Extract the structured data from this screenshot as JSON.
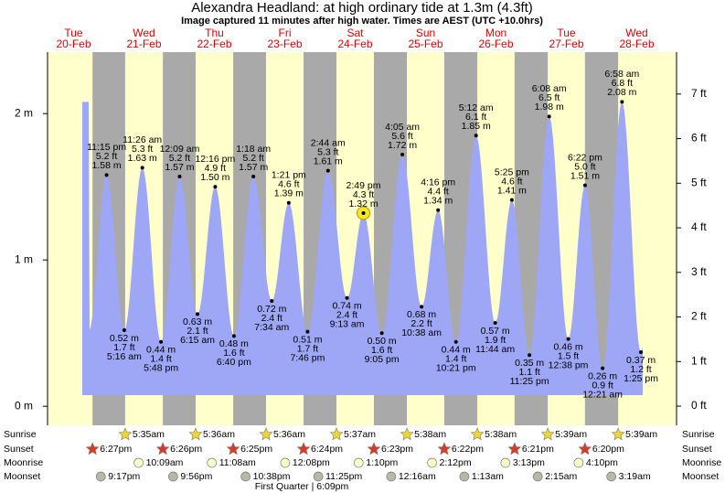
{
  "chart_data": {
    "type": "tide",
    "title": "Alexandra Headland: at high  ordinary tide at 1.3m (4.3ft)",
    "subtitle": "Image captured 11 minutes after high water. Times are AEST (UTC +10.0hrs)",
    "colors": {
      "day": "#ffffcc",
      "night": "#a9a9a9",
      "water": "#9ea6f6",
      "sunset": "#d93a2b",
      "sunrise": "#f2d630",
      "moonrise": "#ffffc8",
      "moonset": "#b8b8a8"
    },
    "ylim": [
      -0.13,
      2.42
    ],
    "yticks": [
      {
        "value": 0,
        "label": "0 m"
      },
      {
        "value": 1,
        "label": "1 m"
      },
      {
        "value": 2,
        "label": "2 m"
      }
    ],
    "y2lim": [
      -0.43,
      7.94
    ],
    "y2ticks": [
      {
        "value": 0,
        "label": "0 ft"
      },
      {
        "value": 1,
        "label": "1 ft"
      },
      {
        "value": 2,
        "label": "2 ft"
      },
      {
        "value": 3,
        "label": "3 ft"
      },
      {
        "value": 4,
        "label": "4 ft"
      },
      {
        "value": 5,
        "label": "5 ft"
      },
      {
        "value": 6,
        "label": "6 ft"
      },
      {
        "value": 7,
        "label": "7 ft"
      }
    ],
    "row_labels": {
      "sunrise": "Sunrise",
      "sunset": "Sunset",
      "moonrise": "Moonrise",
      "moonset": "Moonset"
    },
    "moon_phase": "First Quarter | 6:09pm",
    "days": [
      {
        "weekday": "Tue",
        "date": "20-Feb",
        "sunset": "6:27pm",
        "moonset": "9:17pm",
        "tides": [
          {
            "time": "11:15 pm",
            "feet": "5.2 ft",
            "height": 1.58,
            "height_label": "1.58 m"
          }
        ]
      },
      {
        "weekday": "Wed",
        "date": "21-Feb",
        "sunrise": "5:35am",
        "sunset": "6:26pm",
        "moonrise": "10:09am",
        "moonset": "9:56pm",
        "tides": [
          {
            "time": "5:16 am",
            "feet": "1.7 ft",
            "height": 0.52,
            "height_label": "0.52 m"
          },
          {
            "time": "11:26 am",
            "feet": "5.3 ft",
            "height": 1.63,
            "height_label": "1.63 m"
          },
          {
            "time": "5:48 pm",
            "feet": "1.4 ft",
            "height": 0.44,
            "height_label": "0.44 m"
          }
        ]
      },
      {
        "weekday": "Thu",
        "date": "22-Feb",
        "sunrise": "5:36am",
        "sunset": "6:25pm",
        "moonrise": "11:08am",
        "moonset": "10:38pm",
        "tides": [
          {
            "time": "12:09 am",
            "feet": "5.2 ft",
            "height": 1.57,
            "height_label": "1.57 m"
          },
          {
            "time": "6:15 am",
            "feet": "2.1 ft",
            "height": 0.63,
            "height_label": "0.63 m"
          },
          {
            "time": "12:16 pm",
            "feet": "4.9 ft",
            "height": 1.5,
            "height_label": "1.50 m"
          },
          {
            "time": "6:40 pm",
            "feet": "1.6 ft",
            "height": 0.48,
            "height_label": "0.48 m"
          }
        ]
      },
      {
        "weekday": "Fri",
        "date": "23-Feb",
        "sunrise": "5:36am",
        "sunset": "6:24pm",
        "moonrise": "12:08pm",
        "moonset": "11:25pm",
        "tides": [
          {
            "time": "1:18 am",
            "feet": "5.2 ft",
            "height": 1.57,
            "height_label": "1.57 m"
          },
          {
            "time": "7:34 am",
            "feet": "2.4 ft",
            "height": 0.72,
            "height_label": "0.72 m"
          },
          {
            "time": "1:21 pm",
            "feet": "4.6 ft",
            "height": 1.39,
            "height_label": "1.39 m"
          },
          {
            "time": "7:46 pm",
            "feet": "1.7 ft",
            "height": 0.51,
            "height_label": "0.51 m"
          }
        ]
      },
      {
        "weekday": "Sat",
        "date": "24-Feb",
        "sunrise": "5:37am",
        "sunset": "6:23pm",
        "moonrise": "1:10pm",
        "tides": [
          {
            "time": "2:44 am",
            "feet": "5.3 ft",
            "height": 1.61,
            "height_label": "1.61 m"
          },
          {
            "time": "9:13 am",
            "feet": "2.4 ft",
            "height": 0.74,
            "height_label": "0.74 m"
          },
          {
            "time": "2:49 pm",
            "feet": "4.3 ft",
            "height": 1.32,
            "height_label": "1.32 m",
            "highlight": true
          },
          {
            "time": "9:05 pm",
            "feet": "1.6 ft",
            "height": 0.5,
            "height_label": "0.50 m"
          }
        ]
      },
      {
        "weekday": "Sun",
        "date": "25-Feb",
        "sunrise": "5:38am",
        "sunset": "6:22pm",
        "moonrise": "2:12pm",
        "moonset": "12:16am",
        "tides": [
          {
            "time": "4:05 am",
            "feet": "5.6 ft",
            "height": 1.72,
            "height_label": "1.72 m"
          },
          {
            "time": "10:38 am",
            "feet": "2.2 ft",
            "height": 0.68,
            "height_label": "0.68 m"
          },
          {
            "time": "4:16 pm",
            "feet": "4.4 ft",
            "height": 1.34,
            "height_label": "1.34 m"
          },
          {
            "time": "10:21 pm",
            "feet": "1.4 ft",
            "height": 0.44,
            "height_label": "0.44 m"
          }
        ]
      },
      {
        "weekday": "Mon",
        "date": "26-Feb",
        "sunrise": "5:38am",
        "sunset": "6:21pm",
        "moonrise": "3:13pm",
        "moonset": "1:13am",
        "tides": [
          {
            "time": "5:12 am",
            "feet": "6.1 ft",
            "height": 1.85,
            "height_label": "1.85 m"
          },
          {
            "time": "11:44 am",
            "feet": "1.9 ft",
            "height": 0.57,
            "height_label": "0.57 m"
          },
          {
            "time": "5:25 pm",
            "feet": "4.6 ft",
            "height": 1.41,
            "height_label": "1.41 m"
          },
          {
            "time": "11:25 pm",
            "feet": "1.1 ft",
            "height": 0.35,
            "height_label": "0.35 m"
          }
        ]
      },
      {
        "weekday": "Tue",
        "date": "27-Feb",
        "sunrise": "5:39am",
        "sunset": "6:20pm",
        "moonrise": "4:10pm",
        "moonset": "2:15am",
        "tides": [
          {
            "time": "6:08 am",
            "feet": "6.5 ft",
            "height": 1.98,
            "height_label": "1.98 m"
          },
          {
            "time": "12:38 pm",
            "feet": "1.5 ft",
            "height": 0.46,
            "height_label": "0.46 m"
          },
          {
            "time": "6:22 pm",
            "feet": "5.0 ft",
            "height": 1.51,
            "height_label": "1.51 m"
          }
        ]
      },
      {
        "weekday": "Wed",
        "date": "28-Feb",
        "sunrise": "5:39am",
        "moonset": "3:19am",
        "tides": [
          {
            "time": "12:21 am",
            "feet": "0.9 ft",
            "height": 0.26,
            "height_label": "0.26 m"
          },
          {
            "time": "6:58 am",
            "feet": "6.8 ft",
            "height": 2.08,
            "height_label": "2.08 m"
          },
          {
            "time": "1:25 pm",
            "feet": "1.2 ft",
            "height": 0.37,
            "height_label": "0.37 m"
          }
        ]
      }
    ]
  }
}
